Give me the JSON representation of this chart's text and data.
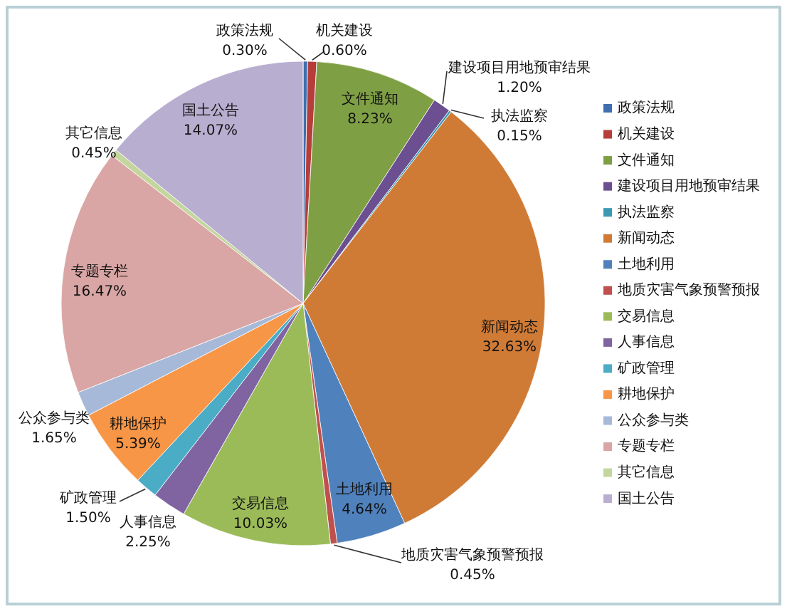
{
  "chart_data": {
    "type": "pie",
    "categories": [
      "政策法规",
      "机关建设",
      "文件通知",
      "建设项目用地预审结果",
      "执法监察",
      "新闻动态",
      "土地利用",
      "地质灾害气象预警预报",
      "交易信息",
      "人事信息",
      "矿政管理",
      "耕地保护",
      "公众参与类",
      "专题专栏",
      "其它信息",
      "国土公告"
    ],
    "values": [
      0.3,
      0.6,
      8.23,
      1.2,
      0.15,
      32.63,
      4.64,
      0.45,
      10.03,
      2.25,
      1.5,
      5.39,
      1.65,
      16.47,
      0.45,
      14.07
    ],
    "value_labels": [
      "0.30%",
      "0.60%",
      "8.23%",
      "1.20%",
      "0.15%",
      "32.63%",
      "4.64%",
      "0.45%",
      "10.03%",
      "2.25%",
      "1.50%",
      "5.39%",
      "1.65%",
      "16.47%",
      "0.45%",
      "14.07%"
    ],
    "colors": [
      "#3f6fae",
      "#b63d3a",
      "#7f9f45",
      "#6b4f90",
      "#3a9ab4",
      "#cf7b36",
      "#4f81bd",
      "#c0504d",
      "#9bbb59",
      "#8064a2",
      "#4bacc6",
      "#f79646",
      "#a6b9d9",
      "#d9a6a5",
      "#c4d69e",
      "#b8aed0"
    ],
    "legend": "right"
  }
}
